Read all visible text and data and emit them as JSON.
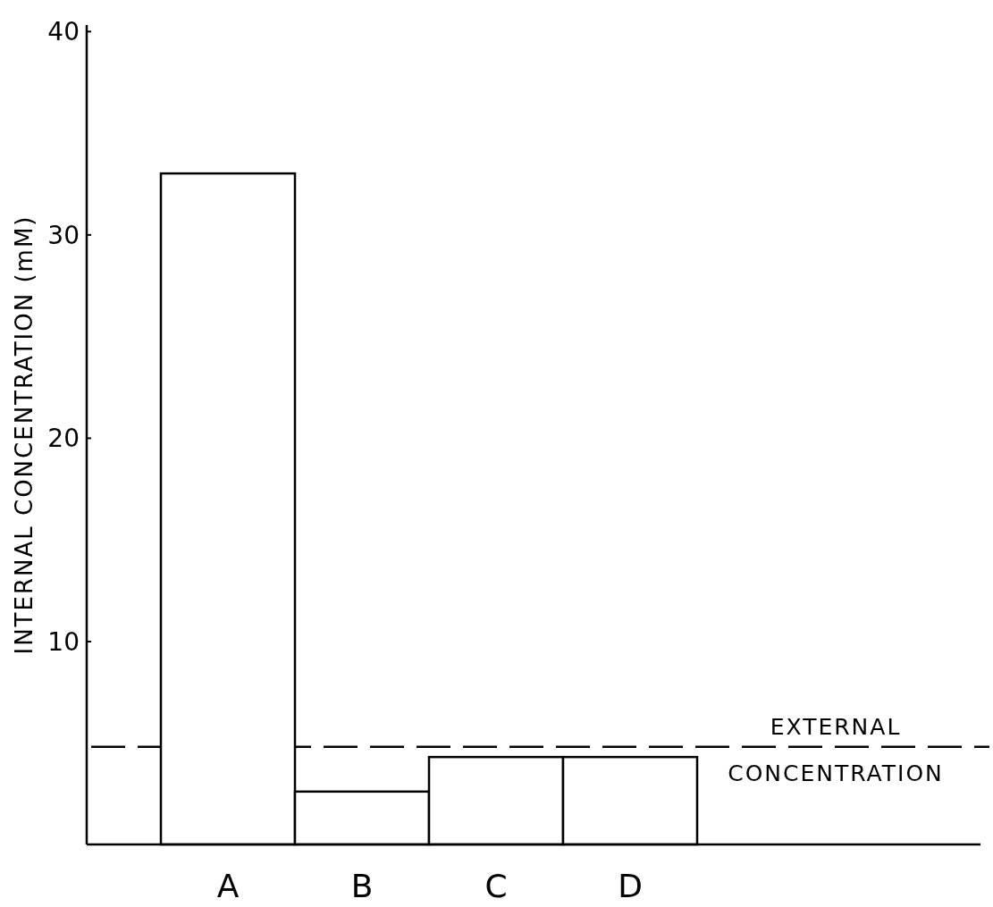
{
  "chart_data": {
    "type": "bar",
    "ylabel": "INTERNAL CONCENTRATION (mM)",
    "categories": [
      "A",
      "B",
      "C",
      "D"
    ],
    "values": [
      33,
      2.6,
      4.3,
      4.3
    ],
    "color": "#ffffff",
    "ylim": [
      0,
      40.3
    ],
    "yticks": [
      10,
      20,
      30,
      40
    ],
    "grid": false,
    "ref_lines": [
      {
        "axis": "y",
        "value": 4.8,
        "label": "EXTERNAL CONCENTRATION",
        "line_style": "dashed",
        "color": "#000000"
      }
    ]
  }
}
